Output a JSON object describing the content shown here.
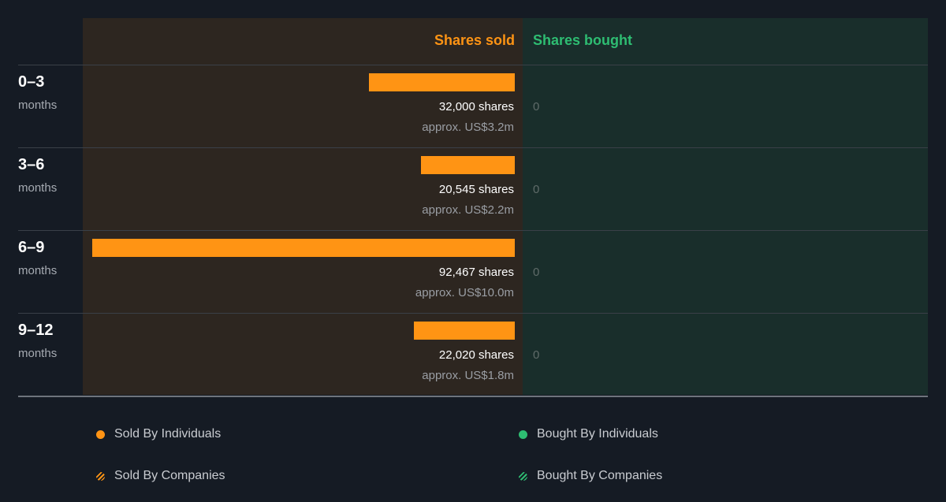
{
  "chart_data": {
    "type": "bar",
    "title": "",
    "categories": [
      "0–3 months",
      "3–6 months",
      "6–9 months",
      "9–12 months"
    ],
    "column_headers": {
      "sold": "Shares sold",
      "bought": "Shares bought"
    },
    "rows": [
      {
        "period": "0–3",
        "unit": "months",
        "sold_shares": 32000,
        "sold_label": "32,000 shares",
        "sold_value_label": "approx. US$3.2m",
        "bought_label": "0"
      },
      {
        "period": "3–6",
        "unit": "months",
        "sold_shares": 20545,
        "sold_label": "20,545 shares",
        "sold_value_label": "approx. US$2.2m",
        "bought_label": "0"
      },
      {
        "period": "6–9",
        "unit": "months",
        "sold_shares": 92467,
        "sold_label": "92,467 shares",
        "sold_value_label": "approx. US$10.0m",
        "bought_label": "0"
      },
      {
        "period": "9–12",
        "unit": "months",
        "sold_shares": 22020,
        "sold_label": "22,020 shares",
        "sold_value_label": "approx. US$1.8m",
        "bought_label": "0"
      }
    ],
    "series": [
      {
        "name": "Sold By Individuals",
        "values": [
          32000,
          20545,
          92467,
          22020
        ]
      },
      {
        "name": "Bought By Individuals",
        "values": [
          0,
          0,
          0,
          0
        ]
      }
    ],
    "legend": [
      {
        "label": "Sold By Individuals",
        "color": "#ff9414",
        "style": "solid"
      },
      {
        "label": "Bought By Individuals",
        "color": "#2ebd72",
        "style": "solid"
      },
      {
        "label": "Sold By Companies",
        "color": "#ff9414",
        "style": "hatched"
      },
      {
        "label": "Bought By Companies",
        "color": "#2ebd72",
        "style": "hatched"
      }
    ],
    "colors": {
      "sold": "#ff9414",
      "bought": "#2ebd72",
      "sold_panel": "#2d2620",
      "bought_panel": "#192e2b",
      "background": "#151b24"
    },
    "grid": true,
    "legend_position": "bottom"
  }
}
